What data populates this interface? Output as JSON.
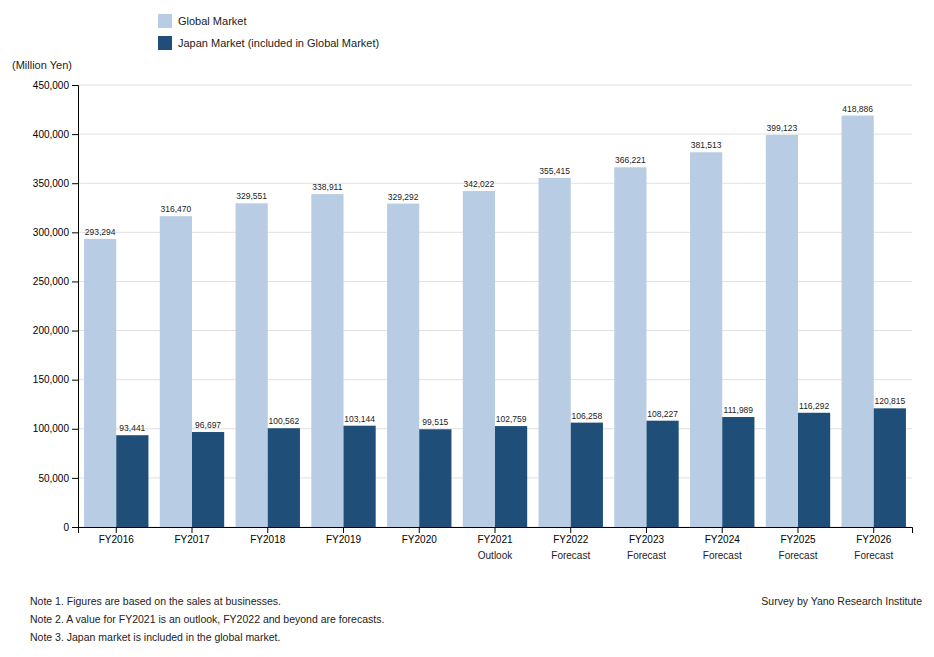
{
  "chart_data": {
    "type": "bar",
    "y_label": "(Million Yen)",
    "categories": [
      "FY2016",
      "FY2017",
      "FY2018",
      "FY2019",
      "FY2020",
      "FY2021",
      "FY2022",
      "FY2023",
      "FY2024",
      "FY2025",
      "FY2026"
    ],
    "sublabels": [
      null,
      null,
      null,
      null,
      null,
      "Outlook",
      "Forecast",
      "Forecast",
      "Forecast",
      "Forecast",
      "Forecast"
    ],
    "series": [
      {
        "name": "Global Market",
        "color": "#b8cce4",
        "values": [
          293294,
          316470,
          329551,
          338911,
          329292,
          342022,
          355415,
          366221,
          381513,
          399123,
          418886
        ],
        "value_labels": [
          "293,294",
          "316,470",
          "329,551",
          "338,911",
          "329,292",
          "342,022",
          "355,415",
          "366,221",
          "381,513",
          "399,123",
          "418,886"
        ]
      },
      {
        "name": "Japan Market (included in Global Market)",
        "color": "#1f4e79",
        "values": [
          93441,
          96697,
          100562,
          103144,
          99515,
          102759,
          106258,
          108227,
          111989,
          116292,
          120815
        ],
        "value_labels": [
          "93,441",
          "96,697",
          "100,562",
          "103,144",
          "99,515",
          "102,759",
          "106,258",
          "108,227",
          "111,989",
          "116,292",
          "120,815"
        ]
      }
    ],
    "ylim": [
      0,
      450000
    ],
    "yticks": [
      0,
      {
        "value": 50000,
        "label": "50,000"
      },
      {
        "value": 100000,
        "label": "100,000"
      },
      {
        "value": 150000,
        "label": "150,000"
      },
      {
        "value": 200000,
        "label": "200,000"
      },
      {
        "value": 250000,
        "label": "250,000"
      },
      {
        "value": 300000,
        "label": "300,000"
      },
      {
        "value": 350000,
        "label": "350,000"
      },
      {
        "value": 400000,
        "label": "400,000"
      },
      {
        "value": 450000,
        "label": "450,000"
      }
    ],
    "grid": true,
    "legend": "upper left",
    "data_labels": true,
    "notes": [
      "Note 1.  Figures are based on the sales at businesses.",
      "Note 2.  A value for FY2021 is an outlook, FY2022 and beyond are forecasts.",
      "Note 3.  Japan market is included in the global market."
    ],
    "source": "Survey by Yano Research Institute"
  }
}
